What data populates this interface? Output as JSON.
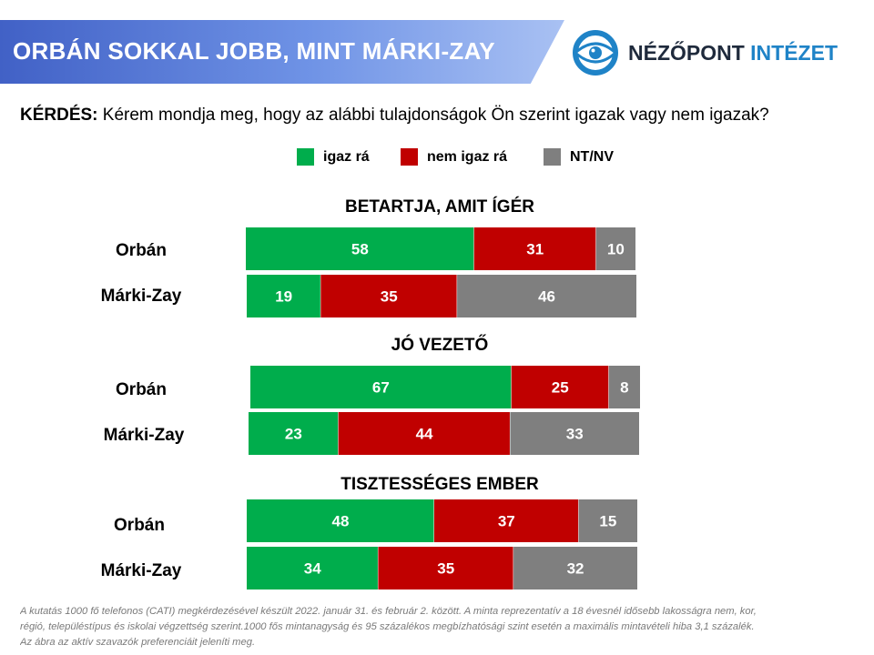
{
  "header": {
    "title": "ORBÁN SOKKAL JOBB, MINT MÁRKI-ZAY"
  },
  "logo": {
    "icon": "target-eye-icon",
    "text_dark": "NÉZŐPONT",
    "text_accent": "INTÉZET",
    "color_dark": "#1f2a3c",
    "color_accent": "#1f83c7"
  },
  "question": {
    "label": "KÉRDÉS:",
    "text": "Kérem mondja meg, hogy az alábbi tulajdonságok Ön szerint igazak vagy nem igazak?"
  },
  "chart_data": {
    "type": "bar",
    "orientation": "horizontal",
    "stacked": true,
    "legend_position": "top",
    "grid": false,
    "series": [
      {
        "name": "igaz rá",
        "color": "#00ad4c"
      },
      {
        "name": "nem igaz rá",
        "color": "#c00000"
      },
      {
        "name": "NT/NV",
        "color": "#7f7f7f"
      }
    ],
    "groups": [
      {
        "title": "BETARTJA, AMIT ÍGÉR",
        "rows": [
          {
            "label": "Orbán",
            "values": [
              58,
              31,
              10
            ]
          },
          {
            "label": "Márki-Zay",
            "values": [
              19,
              35,
              46
            ]
          }
        ]
      },
      {
        "title": "JÓ VEZETŐ",
        "rows": [
          {
            "label": "Orbán",
            "values": [
              67,
              25,
              8
            ]
          },
          {
            "label": "Márki-Zay",
            "values": [
              23,
              44,
              33
            ]
          }
        ]
      },
      {
        "title": "TISZTESSÉGES EMBER",
        "rows": [
          {
            "label": "Orbán",
            "values": [
              48,
              37,
              15
            ]
          },
          {
            "label": "Márki-Zay",
            "values": [
              34,
              35,
              32
            ]
          }
        ]
      }
    ]
  },
  "footnote": [
    "A kutatás 1000 fő telefonos (CATI) megkérdezésével készült 2022. január 31. és február 2. között. A minta reprezentatív a 18 évesnél idősebb lakosságra nem, kor,",
    "régió, településtípus és iskolai végzettség szerint.1000 fős mintanagyság és 95 százalékos megbízhatósági szint esetén a maximális mintavételi hiba 3,1 százalék.",
    "Az ábra az aktív szavazók preferenciáit jeleníti meg."
  ]
}
